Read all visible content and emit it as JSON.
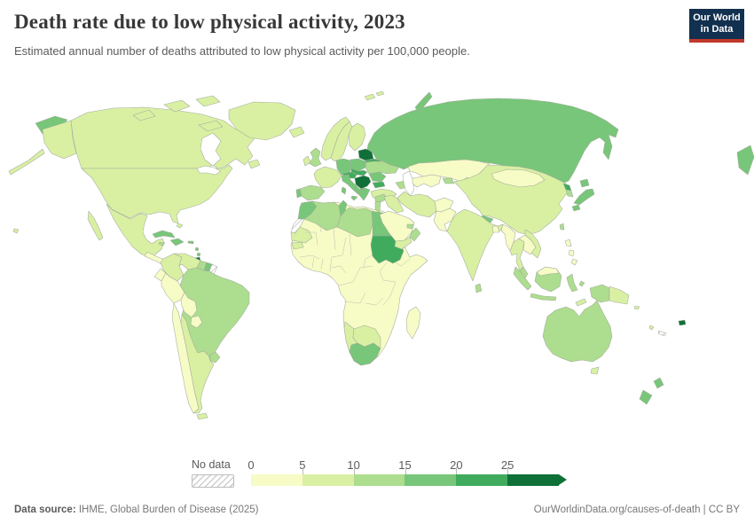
{
  "header": {
    "title": "Death rate due to low physical activity, 2023",
    "subtitle": "Estimated annual number of deaths attributed to low physical activity per 100,000 people."
  },
  "logo": {
    "line1": "Our World",
    "line2": "in Data",
    "bg_color": "#12304f",
    "accent_color": "#c0392b"
  },
  "footer": {
    "source_label": "Data source:",
    "source_text": " IHME, Global Burden of Disease (2025)",
    "credit_text": "OurWorldinData.org/causes-of-death | CC BY"
  },
  "chart_data": {
    "type": "choropleth",
    "title": "Death rate due to low physical activity, 2023",
    "subtitle": "Estimated annual number of deaths attributed to low physical activity per 100,000 people.",
    "unit": "deaths per 100,000 people",
    "year": "2023",
    "legend": {
      "no_data_label": "No data",
      "tick_labels": [
        "0",
        "5",
        "10",
        "15",
        "20",
        "25"
      ],
      "bin_edges": [
        0,
        5,
        10,
        15,
        20,
        25
      ],
      "bin_ranges": [
        "0-5",
        "5-10",
        "10-15",
        "15-20",
        "20-25",
        "25+"
      ],
      "colors": [
        "#f7fbc6",
        "#d9f0a3",
        "#addd8e",
        "#78c679",
        "#41ab5d",
        "#0f7038"
      ],
      "open_ended_upper": true,
      "position": "bottom"
    },
    "region_buckets": {
      "canada": 1,
      "usa": 1,
      "alaska": 1,
      "aleutians": 1,
      "chukotka-wrap": 3,
      "chukotka-wrap-right": 3,
      "greenland": 1,
      "newfoundland": 1,
      "arctic-1": 1,
      "arctic-2": 1,
      "arctic-3": 1,
      "arctic-4": 1,
      "iceland": 1,
      "hawaii": 1,
      "baja": 1,
      "mexico": 1,
      "central-america": 0,
      "cuba": 3,
      "jamaica": 2,
      "hispaniola": 3,
      "puerto-rico": 3,
      "bahamas": 1,
      "lesser-antilles": 3,
      "trinidad": 5,
      "colombia": 1,
      "venezuela": 1,
      "guyana": 2,
      "suriname": 3,
      "french-guiana": "nodata",
      "ecuador": 0,
      "peru": 0,
      "brazil": 2,
      "bolivia": 0,
      "paraguay": 0,
      "chile": 0,
      "argentina": 1,
      "uruguay": 2,
      "tierra-del-fuego": 1,
      "norway": 1,
      "sweden": 1,
      "finland": 1,
      "denmark": 2,
      "uk": 2,
      "ireland": 1,
      "france": 1,
      "spain": 2,
      "portugal": 3,
      "italy": 3,
      "sicily": 3,
      "sardinia": 3,
      "germany": 3,
      "poland": 3,
      "czech-slovakia": 4,
      "austria-switzerland": 4,
      "hungary-balkans": 5,
      "baltics": 5,
      "belarus": 4,
      "ukraine": 2,
      "romania": 3,
      "bulgaria": 4,
      "greece": 3,
      "turkey": 1,
      "caucasus": 2,
      "russia": 3,
      "novaya-zemlya": 3,
      "svalbard-1": 1,
      "svalbard-2": 1,
      "morocco": 3,
      "western-sahara": "nodata",
      "algeria": 2,
      "tunisia": 3,
      "libya": 2,
      "egypt": 3,
      "sudan": 4,
      "mauritania": 1,
      "senegal": 1,
      "africa-base": 0,
      "south-africa": 3,
      "botswana-zimbabwe": 1,
      "namibia": 1,
      "madagascar": 0,
      "saudi": 0,
      "yemen": 1,
      "oman": 2,
      "uae": 2,
      "levant": 2,
      "syria": 2,
      "iraq": 1,
      "iran": 1,
      "afghanistan": 0,
      "pakistan": 0,
      "kazakhstan": 0,
      "uzbek-turkmen": 0,
      "tajik-kyrgyz": 2,
      "india": 1,
      "nepal": 3,
      "bangladesh": 0,
      "sri-lanka": 2,
      "myanmar": 0,
      "thailand": 1,
      "laos-cambodia": 0,
      "vietnam": 1,
      "malaysia-peninsula": 2,
      "china": 1,
      "mongolia": 0,
      "north-korea": 4,
      "south-korea": 2,
      "taiwan": 2,
      "hokkaido": 3,
      "honshu": 3,
      "kyushu": 3,
      "philippines-1": 0,
      "philippines-2": 0,
      "philippines-3": 0,
      "sumatra": 2,
      "java": 2,
      "borneo": 2,
      "malaysia-borneo": 0,
      "sulawesi": 2,
      "moluccas": 2,
      "timor": 1,
      "new-guinea-west": 2,
      "png": 1,
      "solomon": 1,
      "vanuatu": 1,
      "fiji": 5,
      "new-caledonia": "nodata",
      "australia": 2,
      "tasmania": 1,
      "nz-north": 3,
      "nz-south": 3
    }
  }
}
